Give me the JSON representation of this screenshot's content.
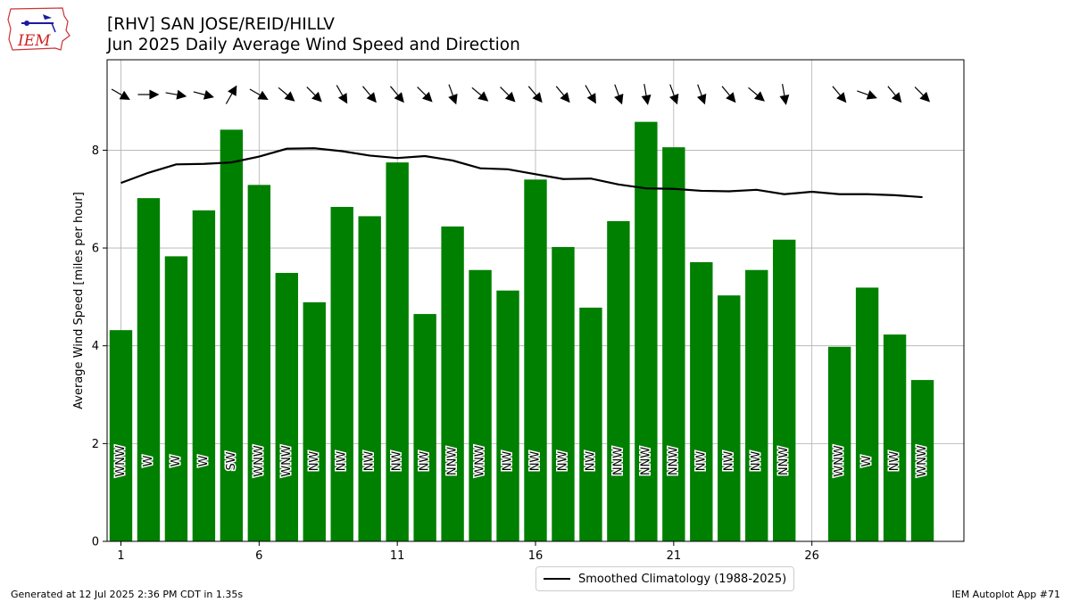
{
  "logo": {
    "text": "IEM",
    "icon": "iowa-state-outline-logo"
  },
  "footer": {
    "generated": "Generated at 12 Jul 2025 2:36 PM CDT in 1.35s",
    "app": "IEM Autoplot App #71"
  },
  "colors": {
    "bar": "#008000",
    "climatology": "#000000",
    "grid": "#b0b0b0"
  },
  "chart_data": {
    "type": "bar",
    "title": "[RHV] SAN JOSE/REID/HILLV",
    "subtitle": "Jun 2025 Daily Average Wind Speed and Direction",
    "xlabel": "",
    "ylabel": "Average Wind Speed [miles per hour]",
    "xlim": [
      0.5,
      31.5
    ],
    "ylim": [
      0,
      9.85
    ],
    "xticks": [
      1,
      6,
      11,
      16,
      21,
      26
    ],
    "yticks": [
      0,
      2,
      4,
      6,
      8
    ],
    "grid": true,
    "legend_position": "bottom-center",
    "days": [
      1,
      2,
      3,
      4,
      5,
      6,
      7,
      8,
      9,
      10,
      11,
      12,
      13,
      14,
      15,
      16,
      17,
      18,
      19,
      20,
      21,
      22,
      23,
      24,
      25,
      27,
      28,
      29,
      30
    ],
    "values": [
      4.32,
      7.02,
      5.83,
      6.77,
      8.42,
      7.29,
      5.49,
      4.89,
      6.84,
      6.65,
      7.75,
      4.65,
      6.44,
      5.55,
      5.13,
      7.4,
      6.02,
      4.78,
      6.55,
      8.58,
      8.06,
      5.71,
      5.03,
      5.55,
      6.17,
      3.98,
      5.19,
      4.23,
      3.3
    ],
    "directions": [
      "WNW",
      "W",
      "W",
      "W",
      "SW",
      "WNW",
      "WNW",
      "NW",
      "NW",
      "NW",
      "NW",
      "NW",
      "NNW",
      "WNW",
      "NW",
      "NW",
      "NW",
      "NW",
      "NNW",
      "NNW",
      "NNW",
      "NW",
      "NW",
      "NW",
      "NNW",
      "WNW",
      "W",
      "NW",
      "WNW"
    ],
    "direction_degrees": [
      300,
      270,
      280,
      285,
      210,
      300,
      310,
      315,
      330,
      320,
      320,
      315,
      340,
      310,
      315,
      320,
      320,
      330,
      340,
      350,
      340,
      340,
      320,
      310,
      350,
      320,
      290,
      320,
      315
    ],
    "series": [
      {
        "name": "Smoothed Climatology (1988-2025)",
        "type": "line",
        "x": [
          1,
          2,
          3,
          4,
          5,
          6,
          7,
          8,
          9,
          10,
          11,
          12,
          13,
          14,
          15,
          16,
          17,
          18,
          19,
          20,
          21,
          22,
          23,
          24,
          25,
          26,
          27,
          28,
          29,
          30
        ],
        "values": [
          7.33,
          7.54,
          7.71,
          7.72,
          7.75,
          7.87,
          8.03,
          8.04,
          7.98,
          7.89,
          7.84,
          7.88,
          7.79,
          7.63,
          7.61,
          7.51,
          7.41,
          7.42,
          7.3,
          7.22,
          7.21,
          7.17,
          7.16,
          7.19,
          7.1,
          7.15,
          7.1,
          7.1,
          7.08,
          7.04
        ]
      }
    ]
  }
}
